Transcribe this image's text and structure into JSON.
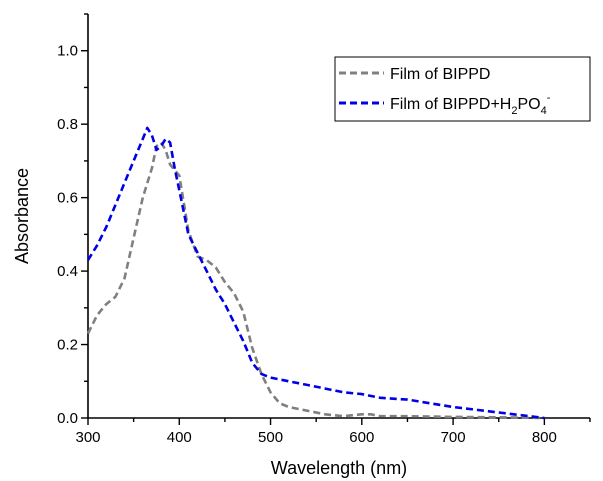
{
  "chart_data": {
    "type": "line",
    "xlabel": "Wavelength (nm)",
    "ylabel": "Absorbance",
    "xlim": [
      300,
      850
    ],
    "ylim": [
      0.0,
      1.1
    ],
    "x_ticks": [
      "300",
      "400",
      "500",
      "600",
      "700",
      "800"
    ],
    "y_ticks": [
      "0.0",
      "0.2",
      "0.4",
      "0.6",
      "0.8",
      "1.0"
    ],
    "legend_position": "top-right",
    "series": [
      {
        "name": "Film of BIPPD",
        "name_parts": {
          "base": "Film of BIPPD"
        },
        "color": "#808080",
        "line_style": "dashed",
        "x": [
          300,
          310,
          320,
          330,
          340,
          350,
          360,
          370,
          375,
          380,
          385,
          390,
          400,
          410,
          420,
          430,
          440,
          450,
          460,
          470,
          480,
          490,
          500,
          510,
          520,
          540,
          560,
          580,
          600,
          610,
          620,
          650,
          700,
          750,
          800
        ],
        "y": [
          0.23,
          0.28,
          0.31,
          0.33,
          0.38,
          0.49,
          0.6,
          0.68,
          0.74,
          0.75,
          0.73,
          0.69,
          0.66,
          0.51,
          0.44,
          0.43,
          0.41,
          0.37,
          0.34,
          0.29,
          0.19,
          0.12,
          0.07,
          0.04,
          0.03,
          0.02,
          0.01,
          0.005,
          0.01,
          0.01,
          0.005,
          0.005,
          0.003,
          0.002,
          0.0
        ]
      },
      {
        "name": "Film of BIPPD+H2PO4-",
        "name_parts": {
          "base": "Film of BIPPD+H",
          "sub1": "2",
          "mid": "PO",
          "sub2": "4",
          "sup": "-"
        },
        "color": "#0000E6",
        "line_style": "dashed",
        "x": [
          300,
          310,
          320,
          330,
          340,
          350,
          360,
          365,
          370,
          375,
          380,
          385,
          390,
          395,
          400,
          410,
          420,
          430,
          440,
          450,
          460,
          470,
          480,
          490,
          500,
          520,
          540,
          560,
          580,
          600,
          620,
          650,
          700,
          750,
          800
        ],
        "y": [
          0.43,
          0.47,
          0.52,
          0.58,
          0.64,
          0.7,
          0.76,
          0.79,
          0.77,
          0.73,
          0.74,
          0.76,
          0.75,
          0.68,
          0.62,
          0.5,
          0.45,
          0.4,
          0.35,
          0.31,
          0.26,
          0.21,
          0.15,
          0.12,
          0.11,
          0.1,
          0.09,
          0.08,
          0.07,
          0.065,
          0.055,
          0.05,
          0.03,
          0.015,
          0.0
        ]
      }
    ]
  }
}
